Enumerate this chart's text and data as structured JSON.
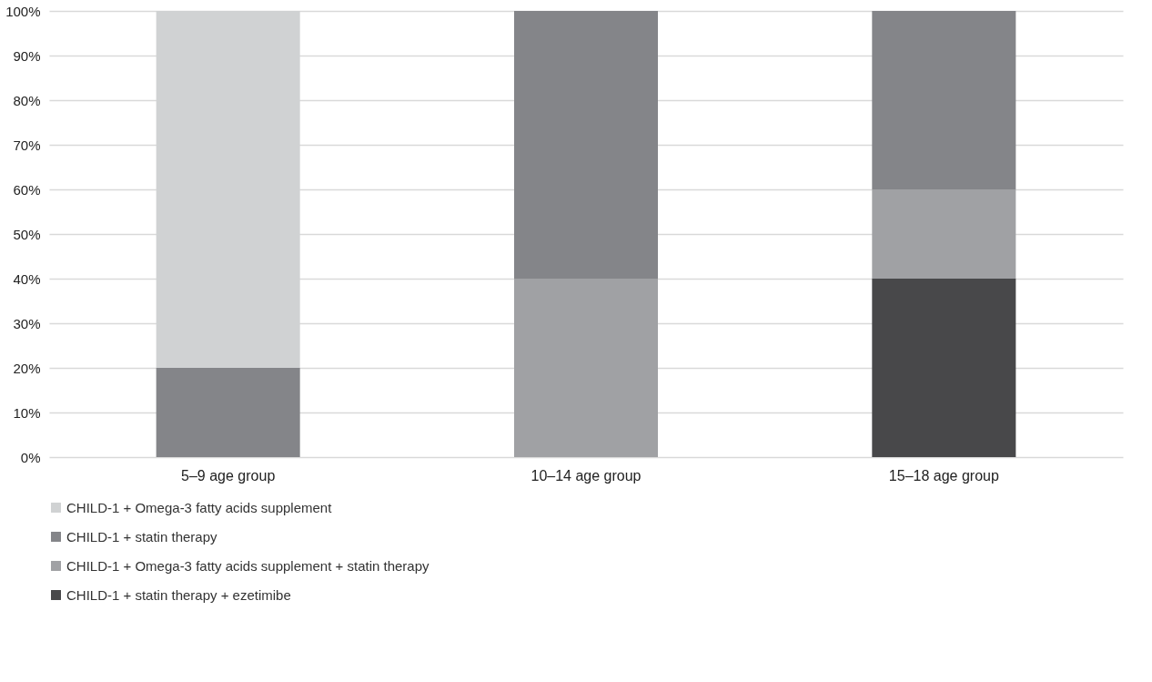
{
  "chart_data": {
    "type": "bar",
    "stacked": true,
    "categories": [
      "5–9 age group",
      "10–14 age group",
      "15–18 age group"
    ],
    "series": [
      {
        "name": "CHILD-1 + statin therapy + ezetimibe",
        "color": "#48484a",
        "values": [
          0,
          0,
          40
        ]
      },
      {
        "name": "CHILD-1 + Omega-3 fatty acids supplement + statin therapy",
        "color": "#a0a1a4",
        "values": [
          0,
          40,
          20
        ]
      },
      {
        "name": "CHILD-1 + statin therapy",
        "color": "#848589",
        "values": [
          20,
          60,
          40
        ]
      },
      {
        "name": "CHILD-1 + Omega-3 fatty acids supplement",
        "color": "#d0d2d3",
        "values": [
          80,
          0,
          0
        ]
      }
    ],
    "ylim": [
      0,
      100
    ],
    "yticks": [
      {
        "value": 0,
        "label": "0%"
      },
      {
        "value": 10,
        "label": "10%"
      },
      {
        "value": 20,
        "label": "20%"
      },
      {
        "value": 30,
        "label": "30%"
      },
      {
        "value": 40,
        "label": "40%"
      },
      {
        "value": 50,
        "label": "50%"
      },
      {
        "value": 60,
        "label": "60%"
      },
      {
        "value": 70,
        "label": "70%"
      },
      {
        "value": 80,
        "label": "80%"
      },
      {
        "value": 90,
        "label": "90%"
      },
      {
        "value": 100,
        "label": "100%"
      }
    ],
    "grid": "y",
    "legend": "bottom"
  }
}
